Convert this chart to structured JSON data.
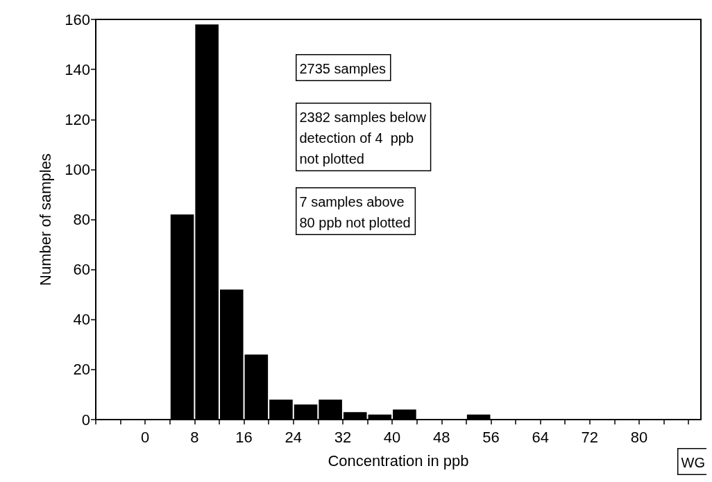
{
  "chart_data": {
    "type": "histogram",
    "xlabel": "Concentration in ppb",
    "ylabel": "Number of samples",
    "bins": [
      4,
      8,
      12,
      16,
      20,
      24,
      28,
      32,
      36,
      40,
      44,
      48,
      52,
      56,
      60,
      64,
      68,
      72,
      76,
      80
    ],
    "values": [
      82,
      158,
      52,
      26,
      8,
      6,
      8,
      3,
      2,
      4,
      0,
      0,
      2,
      0,
      0,
      0,
      0,
      0,
      0
    ],
    "color": "#000000",
    "xlim": [
      -8,
      90
    ],
    "xticks": [
      {
        "value": -8,
        "label": null
      },
      {
        "value": -4,
        "label": null
      },
      0,
      {
        "value": 4,
        "label": null
      },
      8,
      {
        "value": 12,
        "label": null
      },
      16,
      {
        "value": 20,
        "label": null
      },
      24,
      {
        "value": 28,
        "label": null
      },
      32,
      {
        "value": 36,
        "label": null
      },
      40,
      {
        "value": 44,
        "label": null
      },
      48,
      {
        "value": 52,
        "label": null
      },
      56,
      {
        "value": 60,
        "label": null
      },
      64,
      {
        "value": 68,
        "label": null
      },
      72,
      {
        "value": 76,
        "label": null
      },
      80,
      {
        "value": 84,
        "label": null
      },
      {
        "value": 88,
        "label": null
      }
    ],
    "ylim": [
      0,
      160
    ],
    "yticks": [
      0,
      20,
      40,
      60,
      80,
      100,
      120,
      140,
      160
    ],
    "grid": false,
    "annotations": [
      "2735 samples",
      "2382 samples below\ndetection of 4  ppb\nnot plotted",
      "7 samples above\n80 ppb not plotted",
      "WG"
    ]
  }
}
